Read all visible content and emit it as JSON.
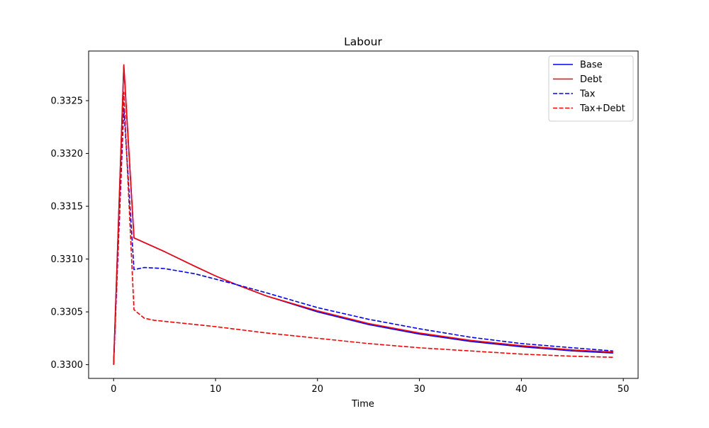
{
  "chart_data": {
    "type": "line",
    "title": "Labour",
    "xlabel": "Time",
    "ylabel": "",
    "xlim": [
      -2.45,
      51.45
    ],
    "ylim": [
      0.32987,
      0.33297
    ],
    "xticks": [
      0,
      10,
      20,
      30,
      40,
      50
    ],
    "xtick_labels": [
      "0",
      "10",
      "20",
      "30",
      "40",
      "50"
    ],
    "yticks": [
      0.33,
      0.3305,
      0.331,
      0.3315,
      0.332,
      0.3325
    ],
    "ytick_labels": [
      "0.3300",
      "0.3305",
      "0.3310",
      "0.3315",
      "0.3320",
      "0.3325"
    ],
    "grid": false,
    "legend_position": "top-right",
    "series": [
      {
        "name": "Base",
        "color": "#0000ff",
        "dash": "solid",
        "points": [
          [
            0,
            0.33
          ],
          [
            1,
            0.33283
          ],
          [
            2,
            0.3312
          ],
          [
            5,
            0.33107
          ],
          [
            8,
            0.33093
          ],
          [
            10,
            0.33084
          ],
          [
            12,
            0.33076
          ],
          [
            15,
            0.33065
          ],
          [
            20,
            0.3305
          ],
          [
            25,
            0.33038
          ],
          [
            30,
            0.33029
          ],
          [
            35,
            0.33022
          ],
          [
            40,
            0.33017
          ],
          [
            45,
            0.33013
          ],
          [
            49,
            0.33011
          ]
        ]
      },
      {
        "name": "Debt",
        "color": "#ff0000",
        "dash": "solid",
        "points": [
          [
            0,
            0.33
          ],
          [
            1,
            0.33284
          ],
          [
            2,
            0.3312
          ],
          [
            5,
            0.33107
          ],
          [
            8,
            0.33093
          ],
          [
            10,
            0.33084
          ],
          [
            12,
            0.33076
          ],
          [
            15,
            0.33065
          ],
          [
            20,
            0.33051
          ],
          [
            25,
            0.33039
          ],
          [
            30,
            0.3303
          ],
          [
            35,
            0.33023
          ],
          [
            40,
            0.33018
          ],
          [
            45,
            0.33014
          ],
          [
            49,
            0.33012
          ]
        ]
      },
      {
        "name": "Tax",
        "color": "#0000ff",
        "dash": "dashed",
        "points": [
          [
            0,
            0.33
          ],
          [
            1,
            0.33243
          ],
          [
            2,
            0.3309
          ],
          [
            3,
            0.33092
          ],
          [
            5,
            0.33091
          ],
          [
            8,
            0.33086
          ],
          [
            10,
            0.33081
          ],
          [
            12,
            0.33076
          ],
          [
            15,
            0.33068
          ],
          [
            20,
            0.33054
          ],
          [
            25,
            0.33043
          ],
          [
            30,
            0.33034
          ],
          [
            35,
            0.33026
          ],
          [
            40,
            0.3302
          ],
          [
            45,
            0.33016
          ],
          [
            49,
            0.33013
          ]
        ]
      },
      {
        "name": "Tax+Debt",
        "color": "#ff0000",
        "dash": "dashed",
        "points": [
          [
            0,
            0.33
          ],
          [
            1,
            0.33258
          ],
          [
            2,
            0.33052
          ],
          [
            3,
            0.33044
          ],
          [
            4,
            0.33042
          ],
          [
            6,
            0.3304
          ],
          [
            10,
            0.33036
          ],
          [
            15,
            0.3303
          ],
          [
            20,
            0.33025
          ],
          [
            25,
            0.3302
          ],
          [
            30,
            0.33016
          ],
          [
            35,
            0.33013
          ],
          [
            40,
            0.3301
          ],
          [
            45,
            0.33008
          ],
          [
            49,
            0.33007
          ]
        ]
      }
    ]
  }
}
